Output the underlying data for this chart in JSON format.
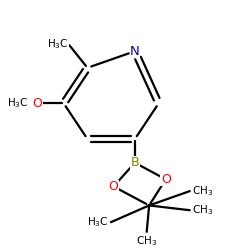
{
  "background_color": "#ffffff",
  "atom_colors": {
    "N": "#0000cc",
    "O": "#ff0000",
    "B": "#808000",
    "C": "#000000"
  },
  "figsize": [
    2.5,
    2.5
  ],
  "dpi": 100
}
